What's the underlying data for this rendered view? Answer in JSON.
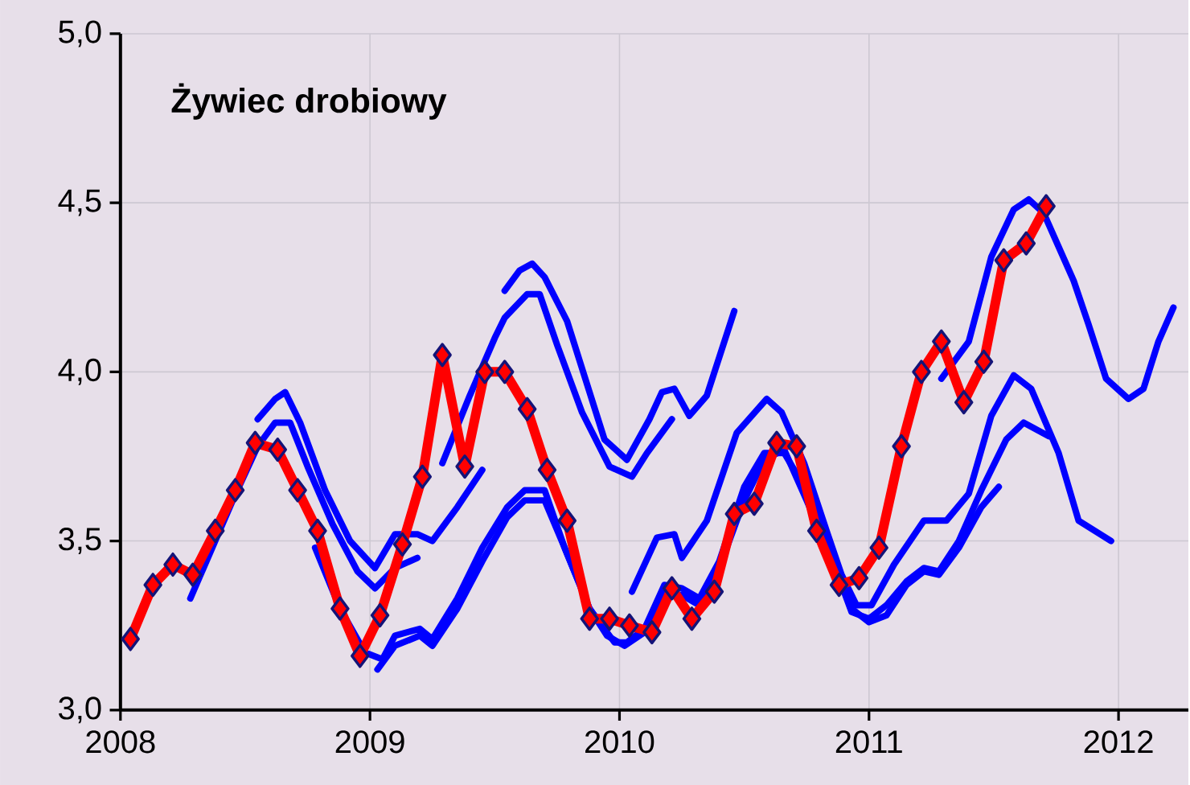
{
  "chart_data": {
    "type": "line",
    "title": "Żywiec drobiowy",
    "xlim": [
      2008,
      2012.28
    ],
    "xticks": [
      2008,
      2009,
      2010,
      2011,
      2012
    ],
    "ylim": [
      3,
      5
    ],
    "yticks": [
      {
        "value": 3,
        "label": "3,0"
      },
      {
        "value": 3.5,
        "label": "3,5"
      },
      {
        "value": 4,
        "label": "4,0"
      },
      {
        "value": 4.5,
        "label": "4,5"
      },
      {
        "value": 5,
        "label": "5,0"
      }
    ],
    "grid": true,
    "line_style": "solid",
    "series": [
      {
        "color": "#0000ff",
        "marker": "none",
        "x": [
          2008.28,
          2008.45,
          2008.55,
          2008.62,
          2008.68,
          2008.75,
          2008.85,
          2008.95,
          2009.02,
          2009.1,
          2009.19
        ],
        "values": [
          3.33,
          3.62,
          3.78,
          3.85,
          3.85,
          3.72,
          3.55,
          3.41,
          3.36,
          3.42,
          3.45
        ]
      },
      {
        "color": "#0000ff",
        "marker": "none",
        "x": [
          2008.55,
          2008.62,
          2008.66,
          2008.72,
          2008.82,
          2008.92,
          2009.02,
          2009.1,
          2009.19,
          2009.25,
          2009.35,
          2009.45
        ],
        "values": [
          3.86,
          3.92,
          3.94,
          3.85,
          3.65,
          3.5,
          3.42,
          3.52,
          3.52,
          3.5,
          3.6,
          3.71
        ]
      },
      {
        "color": "#0000ff",
        "marker": "none",
        "x": [
          2008.78,
          2008.88,
          2008.98,
          2009.05,
          2009.1,
          2009.2,
          2009.25,
          2009.35,
          2009.45,
          2009.55,
          2009.62,
          2009.7,
          2009.78,
          2009.88,
          2009.98,
          2010.03,
          2010.1,
          2010.18,
          2010.25,
          2010.32,
          2010.4,
          2010.5,
          2010.58,
          2010.66,
          2010.75,
          2010.85,
          2010.93,
          2011.0,
          2011.07,
          2011.15,
          2011.22,
          2011.28,
          2011.36,
          2011.45,
          2011.52
        ],
        "values": [
          3.48,
          3.3,
          3.17,
          3.15,
          3.22,
          3.24,
          3.21,
          3.33,
          3.48,
          3.6,
          3.65,
          3.65,
          3.48,
          3.3,
          3.2,
          3.2,
          3.24,
          3.37,
          3.36,
          3.33,
          3.44,
          3.66,
          3.76,
          3.76,
          3.65,
          3.47,
          3.3,
          3.26,
          3.28,
          3.37,
          3.41,
          3.4,
          3.48,
          3.6,
          3.66
        ]
      },
      {
        "color": "#0000ff",
        "marker": "none",
        "x": [
          2009.03,
          2009.1,
          2009.2,
          2009.25,
          2009.35,
          2009.45,
          2009.55,
          2009.62,
          2009.7,
          2009.78,
          2009.88,
          2009.95,
          2010.02,
          2010.1,
          2010.18,
          2010.25,
          2010.32,
          2010.4,
          2010.5,
          2010.58,
          2010.66,
          2010.75,
          2010.85,
          2010.93,
          2011.0,
          2011.07,
          2011.15,
          2011.22,
          2011.28,
          2011.36,
          2011.45,
          2011.55,
          2011.62,
          2011.72
        ],
        "values": [
          3.12,
          3.19,
          3.22,
          3.19,
          3.3,
          3.44,
          3.57,
          3.62,
          3.62,
          3.48,
          3.3,
          3.22,
          3.19,
          3.23,
          3.35,
          3.34,
          3.31,
          3.42,
          3.62,
          3.74,
          3.77,
          3.62,
          3.45,
          3.29,
          3.27,
          3.31,
          3.38,
          3.42,
          3.41,
          3.5,
          3.65,
          3.8,
          3.85,
          3.81
        ]
      },
      {
        "color": "#0000ff",
        "marker": "none",
        "x": [
          2009.29,
          2009.4,
          2009.5,
          2009.54,
          2009.63,
          2009.68,
          2009.75,
          2009.85,
          2009.96,
          2010.05,
          2010.11,
          2010.21
        ],
        "values": [
          3.73,
          3.93,
          4.1,
          4.16,
          4.23,
          4.23,
          4.08,
          3.88,
          3.72,
          3.69,
          3.76,
          3.86
        ]
      },
      {
        "color": "#0000ff",
        "marker": "none",
        "x": [
          2009.54,
          2009.6,
          2009.65,
          2009.7,
          2009.79,
          2009.94,
          2010.03,
          2010.12,
          2010.17,
          2010.22,
          2010.28,
          2010.35,
          2010.46
        ],
        "values": [
          4.24,
          4.3,
          4.32,
          4.28,
          4.15,
          3.8,
          3.74,
          3.86,
          3.94,
          3.95,
          3.87,
          3.93,
          4.18
        ]
      },
      {
        "color": "#0000ff",
        "marker": "none",
        "x": [
          2010.05,
          2010.15,
          2010.22,
          2010.25,
          2010.35,
          2010.47,
          2010.59,
          2010.65,
          2010.74,
          2010.83,
          2010.89,
          2010.95,
          2011.01,
          2011.1,
          2011.22,
          2011.31,
          2011.4,
          2011.49,
          2011.58,
          2011.65,
          2011.76,
          2011.84,
          2011.97
        ],
        "values": [
          3.35,
          3.51,
          3.52,
          3.45,
          3.56,
          3.82,
          3.92,
          3.88,
          3.73,
          3.53,
          3.4,
          3.31,
          3.31,
          3.43,
          3.56,
          3.56,
          3.64,
          3.87,
          3.99,
          3.95,
          3.76,
          3.56,
          3.5
        ]
      },
      {
        "color": "#0000ff",
        "marker": "none",
        "x": [
          2011.29,
          2011.4,
          2011.49,
          2011.58,
          2011.64,
          2011.7,
          2011.82,
          2011.88,
          2011.95,
          2012.04,
          2012.1,
          2012.16,
          2012.22
        ],
        "values": [
          3.98,
          4.09,
          4.34,
          4.48,
          4.51,
          4.47,
          4.27,
          4.14,
          3.98,
          3.92,
          3.95,
          4.09,
          4.19
        ]
      },
      {
        "color": "#ff0000",
        "marker": "diamond",
        "x": [
          2008.04,
          2008.13,
          2008.21,
          2008.29,
          2008.38,
          2008.46,
          2008.54,
          2008.63,
          2008.71,
          2008.79,
          2008.88,
          2008.96,
          2009.04,
          2009.13,
          2009.21,
          2009.29,
          2009.38,
          2009.46,
          2009.54,
          2009.63,
          2009.71,
          2009.79,
          2009.88,
          2009.96,
          2010.04,
          2010.13,
          2010.21,
          2010.29,
          2010.38,
          2010.46,
          2010.54,
          2010.63,
          2010.71,
          2010.79,
          2010.88,
          2010.96,
          2011.04,
          2011.13,
          2011.21,
          2011.29,
          2011.38,
          2011.46,
          2011.54,
          2011.63,
          2011.71
        ],
        "values": [
          3.21,
          3.37,
          3.43,
          3.4,
          3.53,
          3.65,
          3.79,
          3.77,
          3.65,
          3.53,
          3.3,
          3.16,
          3.28,
          3.49,
          3.69,
          4.05,
          3.72,
          4.0,
          4.0,
          3.89,
          3.71,
          3.56,
          3.27,
          3.27,
          3.25,
          3.23,
          3.36,
          3.27,
          3.35,
          3.58,
          3.61,
          3.79,
          3.78,
          3.53,
          3.37,
          3.39,
          3.48,
          3.78,
          4.0,
          4.09,
          3.91,
          4.03,
          4.33,
          4.38,
          4.49
        ]
      }
    ]
  }
}
